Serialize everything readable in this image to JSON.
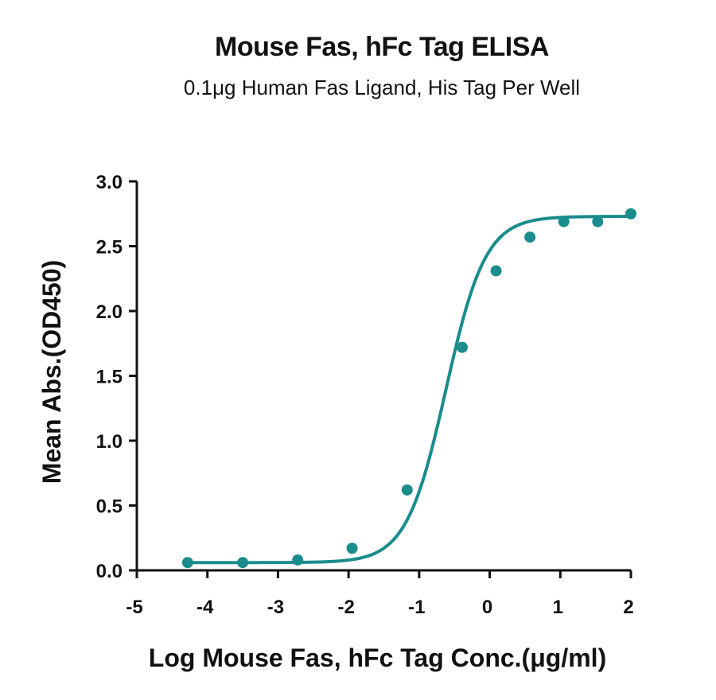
{
  "title": "Mouse Fas, hFc Tag ELISA",
  "subtitle": "0.1μg Human Fas Ligand, His Tag Per Well",
  "colors": {
    "series": "#1a8c8c",
    "axis": "#111111"
  },
  "chart_data": {
    "type": "scatter",
    "title": "Mouse Fas, hFc Tag ELISA",
    "subtitle": "0.1μg Human Fas Ligand, His Tag Per Well",
    "xlabel": "Log Mouse Fas, hFc Tag Conc.(μg/ml)",
    "ylabel": "Mean Abs.(OD450)",
    "xlim": [
      -5,
      2
    ],
    "ylim": [
      0,
      3.0
    ],
    "xticks": [
      -5,
      -4,
      -3,
      -2,
      -1,
      0,
      1,
      2
    ],
    "xtick_labels": [
      "-5",
      "-4",
      "-3",
      "-2",
      "-1",
      "0",
      "1",
      "2"
    ],
    "yticks": [
      0,
      0.5,
      1.0,
      1.5,
      2.0,
      2.5,
      3.0
    ],
    "ytick_labels": [
      "0.0",
      "0.5",
      "1.0",
      "1.5",
      "2.0",
      "2.5",
      "3.0"
    ],
    "grid": false,
    "legend": "none",
    "fit": "sigmoidal 4PL curve through points",
    "series": [
      {
        "x": [
          -4.28,
          -3.5,
          -2.72,
          -1.95,
          -1.17,
          -0.39,
          0.09,
          0.57,
          1.05,
          1.53,
          2.0
        ],
        "y": [
          0.06,
          0.06,
          0.08,
          0.17,
          0.62,
          1.72,
          2.31,
          2.57,
          2.69,
          2.69,
          2.75
        ]
      }
    ]
  }
}
